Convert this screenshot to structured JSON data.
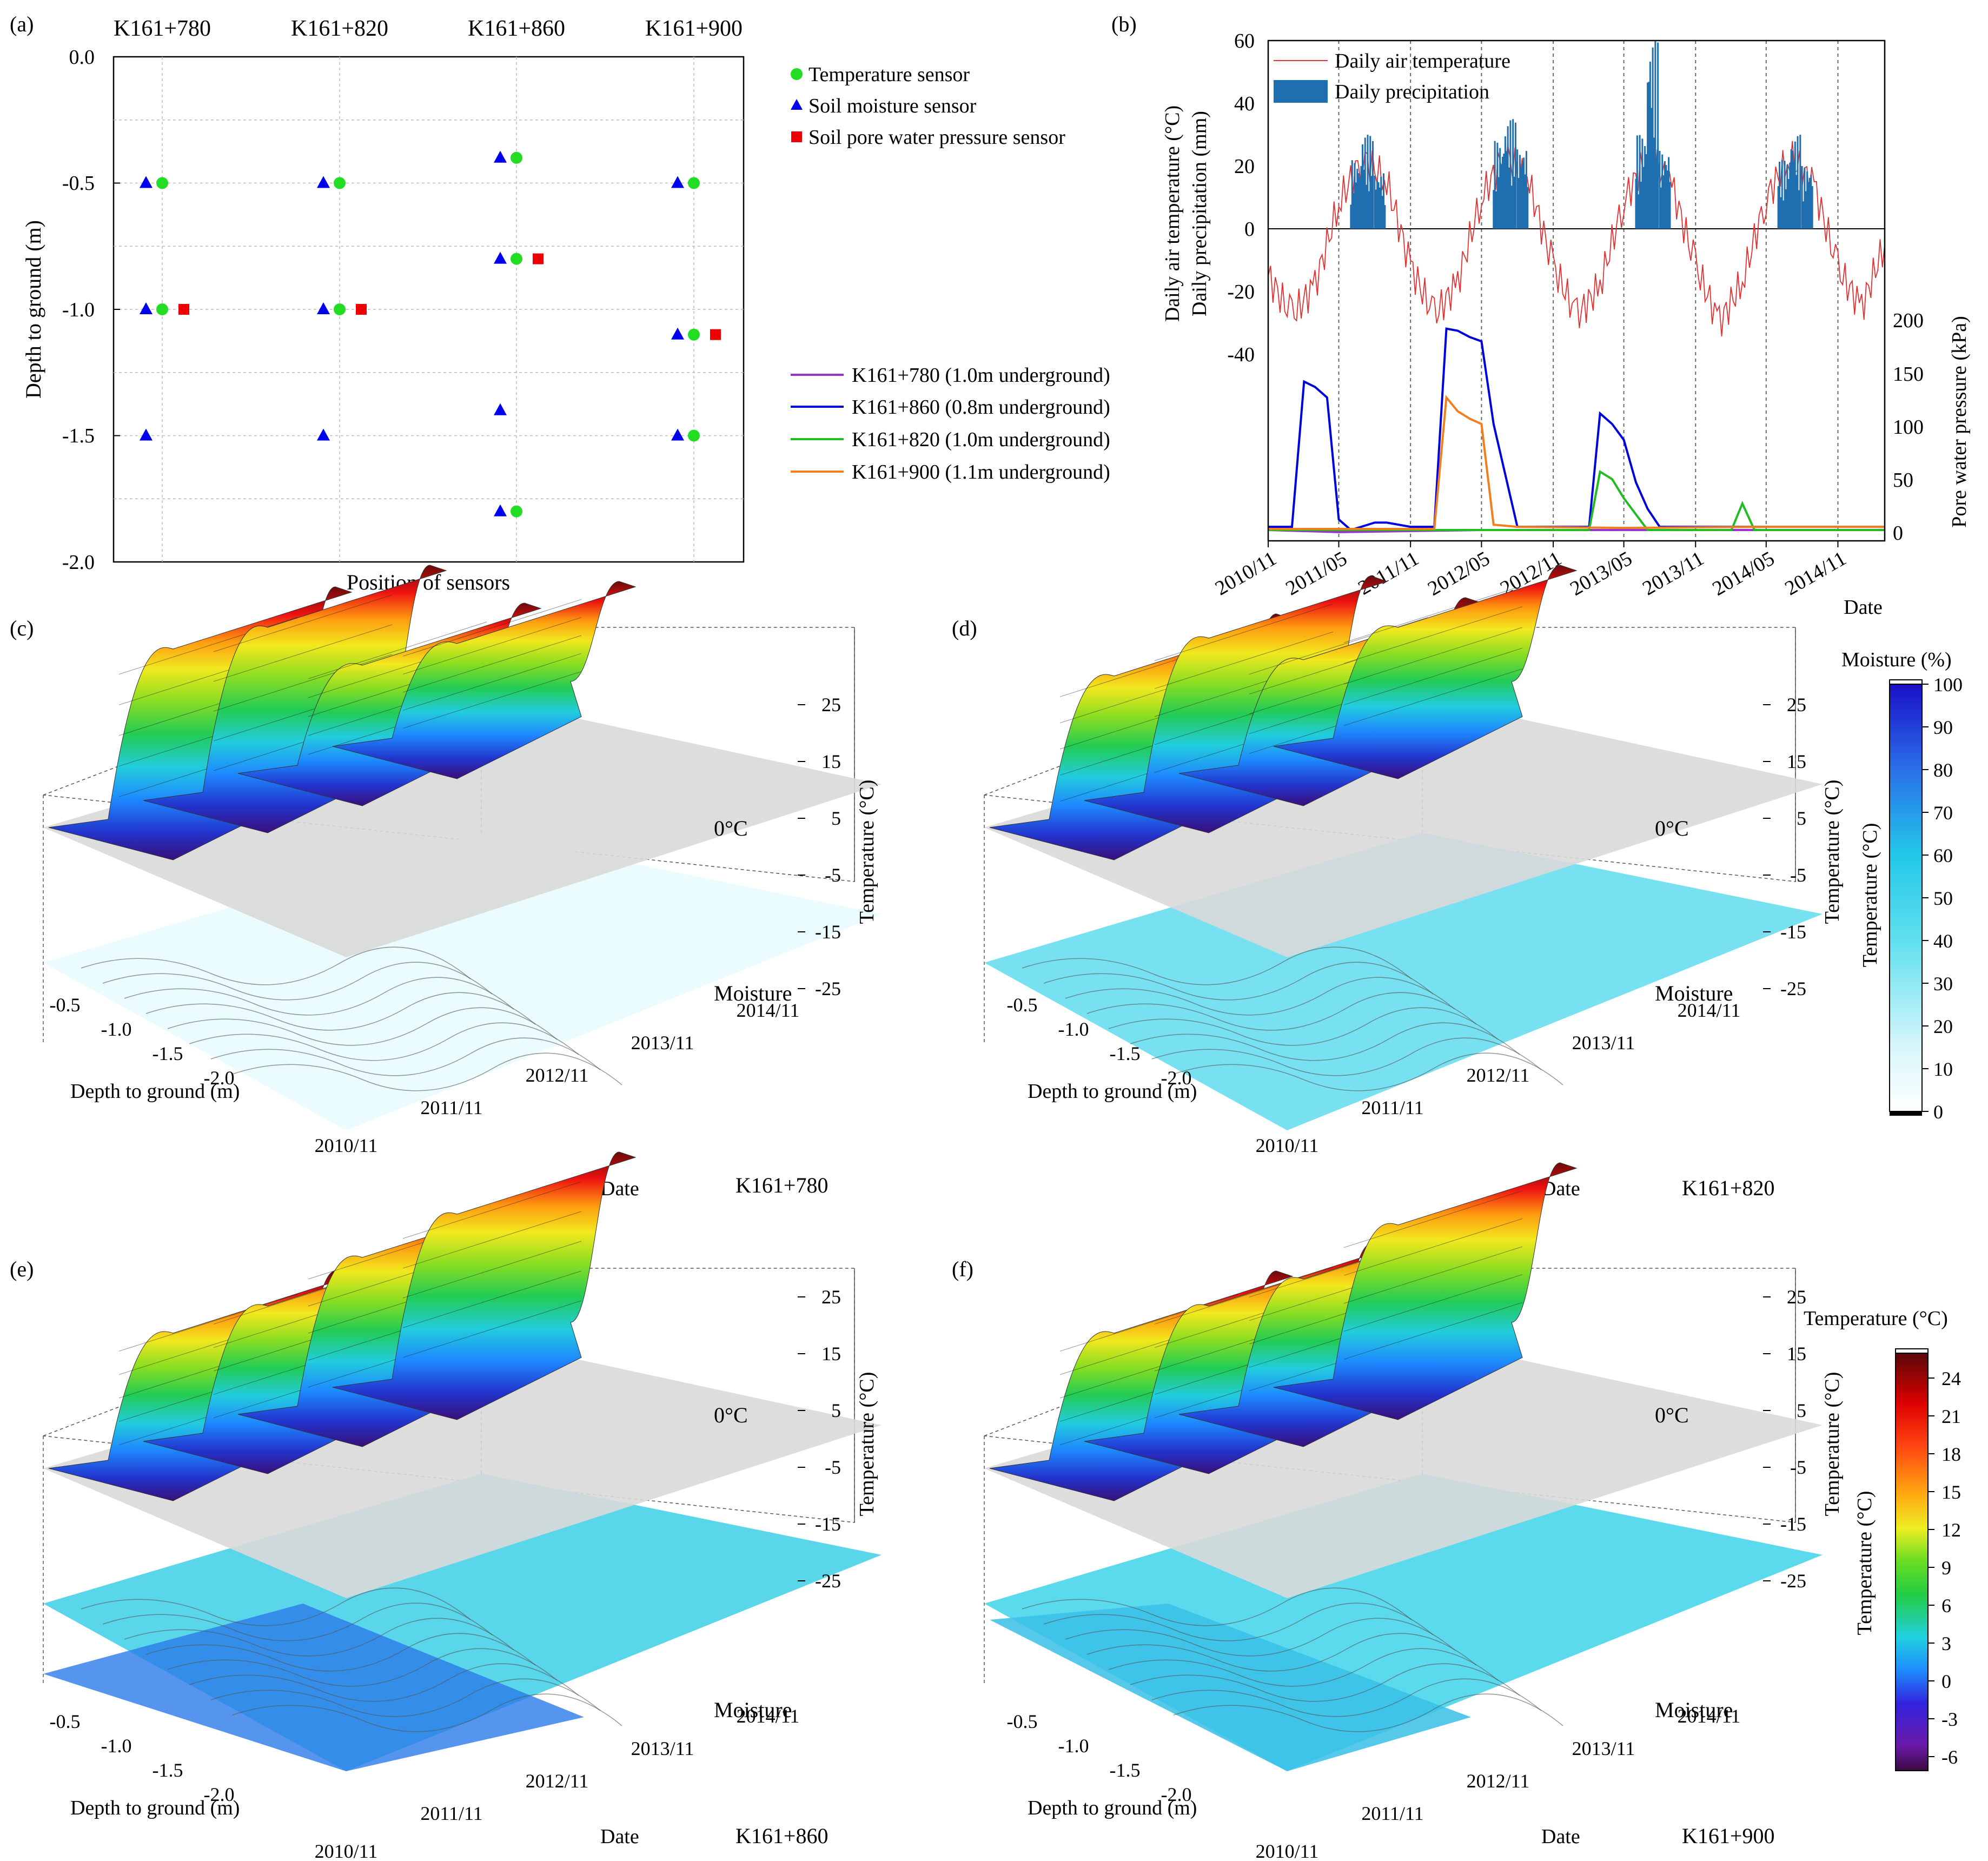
{
  "panels": {
    "a": {
      "label": "(a)",
      "xlabel": "Position of sensors",
      "ylabel": "Depth to ground (m)",
      "stations": [
        "K161+780",
        "K161+820",
        "K161+860",
        "K161+900"
      ],
      "yticks": [
        "0.0",
        "-0.5",
        "-1.0",
        "-1.5",
        "-2.0"
      ],
      "legend": [
        "Temperature sensor",
        "Soil moisture sensor",
        "Soil pore water pressure sensor"
      ]
    },
    "b": {
      "label": "(b)",
      "ylabel_left_1": "Daily air temperature (°C)",
      "ylabel_left_2": "Daily precipitation (mm)",
      "ylabel_right": "Pore water pressure (kPa)",
      "xlabel": "Date",
      "left_ticks": [
        "60",
        "40",
        "20",
        "0",
        "-20",
        "-40"
      ],
      "right_ticks": [
        "200",
        "150",
        "100",
        "50",
        "0"
      ],
      "dates": [
        "2010/11",
        "2011/05",
        "2011/11",
        "2012/05",
        "2012/11",
        "2013/05",
        "2013/11",
        "2014/05",
        "2014/11"
      ],
      "legend_top": [
        "Daily air temperature",
        "Daily precipitation"
      ],
      "legend_bottom": [
        "K161+780 (1.0m underground)",
        "K161+860 (0.8m underground)",
        "K161+820 (1.0m underground)",
        "K161+900 (1.1m underground)"
      ]
    },
    "surfaces": [
      {
        "label": "(c)",
        "station": "K161+780"
      },
      {
        "label": "(d)",
        "station": "K161+820"
      },
      {
        "label": "(e)",
        "station": "K161+860"
      },
      {
        "label": "(f)",
        "station": "K161+900"
      }
    ],
    "surface_common": {
      "zlabel": "Temperature (°C)",
      "zticks": [
        "25",
        "15",
        "5",
        "-5",
        "-15",
        "-25"
      ],
      "depth_label": "Depth to ground (m)",
      "depth_ticks": [
        "-0.5",
        "-1.0",
        "-1.5",
        "-2.0"
      ],
      "date_label": "Date",
      "date_ticks": [
        "2010/11",
        "2011/11",
        "2012/11",
        "2013/11",
        "2014/11"
      ],
      "zero_label": "0°C",
      "moisture_label": "Moisture"
    },
    "colorbar_moisture": {
      "title": "Moisture (%)",
      "side_label": "Temperature (°C)",
      "ticks": [
        "100",
        "90",
        "80",
        "70",
        "60",
        "50",
        "40",
        "30",
        "20",
        "10",
        "0"
      ]
    },
    "colorbar_temperature": {
      "title": "Temperature (°C)",
      "side_label": "Temperature (°C)",
      "ticks": [
        "24",
        "21",
        "18",
        "15",
        "12",
        "9",
        "6",
        "3",
        "0",
        "-3",
        "-6"
      ]
    }
  },
  "chart_data": [
    {
      "type": "scatter",
      "panel": "a",
      "xlabel": "Position of sensors",
      "ylabel": "Depth to ground (m)",
      "ylim": [
        -2.0,
        0.0
      ],
      "categories": [
        "K161+780",
        "K161+820",
        "K161+860",
        "K161+900"
      ],
      "series": [
        {
          "name": "Temperature sensor",
          "color": "#22dd22",
          "points": [
            [
              "K161+780",
              -0.5
            ],
            [
              "K161+780",
              -1.0
            ],
            [
              "K161+820",
              -0.5
            ],
            [
              "K161+820",
              -1.0
            ],
            [
              "K161+860",
              -0.4
            ],
            [
              "K161+860",
              -0.8
            ],
            [
              "K161+860",
              -1.8
            ],
            [
              "K161+900",
              -0.5
            ],
            [
              "K161+900",
              -1.1
            ],
            [
              "K161+900",
              -1.5
            ]
          ]
        },
        {
          "name": "Soil moisture sensor",
          "color": "#0000ee",
          "points": [
            [
              "K161+780",
              -0.5
            ],
            [
              "K161+780",
              -1.0
            ],
            [
              "K161+780",
              -1.5
            ],
            [
              "K161+820",
              -0.5
            ],
            [
              "K161+820",
              -1.0
            ],
            [
              "K161+820",
              -1.5
            ],
            [
              "K161+860",
              -0.4
            ],
            [
              "K161+860",
              -0.8
            ],
            [
              "K161+860",
              -1.4
            ],
            [
              "K161+860",
              -1.8
            ],
            [
              "K161+900",
              -0.5
            ],
            [
              "K161+900",
              -1.1
            ],
            [
              "K161+900",
              -1.5
            ]
          ]
        },
        {
          "name": "Soil pore water pressure sensor",
          "color": "#ee0000",
          "points": [
            [
              "K161+780",
              -1.0
            ],
            [
              "K161+820",
              -1.0
            ],
            [
              "K161+860",
              -0.8
            ],
            [
              "K161+900",
              -1.1
            ]
          ]
        }
      ]
    },
    {
      "type": "line",
      "panel": "b",
      "xlabel": "Date",
      "x_range": [
        "2010/11",
        "2015/03"
      ],
      "left_axis": {
        "label": "Daily air temperature (°C) / Daily precipitation (mm)",
        "range": [
          -40,
          60
        ]
      },
      "right_axis": {
        "label": "Pore water pressure (kPa)",
        "range": [
          0,
          200
        ]
      },
      "series": [
        {
          "name": "Daily air temperature",
          "color": "#e03030",
          "axis": "left",
          "x": [
            "2010/11",
            "2011/01",
            "2011/03",
            "2011/05",
            "2011/07",
            "2011/09",
            "2011/11",
            "2012/01",
            "2012/03",
            "2012/05",
            "2012/07",
            "2012/09",
            "2012/11",
            "2013/01",
            "2013/03",
            "2013/05",
            "2013/07",
            "2013/09",
            "2013/11",
            "2014/01",
            "2014/03",
            "2014/05",
            "2014/07",
            "2014/09",
            "2014/11",
            "2015/01",
            "2015/03"
          ],
          "values": [
            -15,
            -28,
            -18,
            8,
            23,
            15,
            -12,
            -28,
            -17,
            10,
            24,
            14,
            -12,
            -28,
            -18,
            9,
            23,
            14,
            -12,
            -30,
            -17,
            10,
            23,
            14,
            -13,
            -25,
            -5
          ]
        },
        {
          "name": "Daily precipitation",
          "color": "#1f6fb0",
          "axis": "left",
          "type": "bar",
          "x": [
            "2011/06",
            "2011/07",
            "2011/08",
            "2012/06",
            "2012/07",
            "2012/08",
            "2013/06",
            "2013/07",
            "2013/08",
            "2014/06",
            "2014/07",
            "2014/08"
          ],
          "values": [
            22,
            30,
            18,
            28,
            35,
            26,
            30,
            60,
            25,
            22,
            30,
            20
          ]
        },
        {
          "name": "K161+780 (1.0m underground)",
          "color": "#9933cc",
          "axis": "right",
          "x": [
            "2010/11",
            "2011/05",
            "2012/05",
            "2013/05",
            "2014/05",
            "2015/03"
          ],
          "values": [
            0,
            -2,
            0,
            0,
            0,
            0
          ]
        },
        {
          "name": "K161+860 (0.8m underground)",
          "color": "#0000dd",
          "axis": "right",
          "x": [
            "2010/11",
            "2011/01",
            "2011/02",
            "2011/03",
            "2011/04",
            "2011/05",
            "2011/06",
            "2011/08",
            "2011/09",
            "2011/11",
            "2012/01",
            "2012/02",
            "2012/03",
            "2012/04",
            "2012/05",
            "2012/06",
            "2012/08",
            "2012/11",
            "2013/01",
            "2013/02",
            "2013/03",
            "2013/04",
            "2013/05",
            "2013/06",
            "2013/07",
            "2013/08",
            "2013/09",
            "2014/01",
            "2015/03"
          ],
          "values": [
            3,
            3,
            140,
            135,
            125,
            10,
            0,
            7,
            7,
            3,
            3,
            190,
            188,
            182,
            178,
            100,
            3,
            3,
            3,
            3,
            110,
            100,
            85,
            45,
            20,
            3,
            3,
            3,
            3
          ]
        },
        {
          "name": "K161+820 (1.0m underground)",
          "color": "#22bb22",
          "axis": "right",
          "x": [
            "2010/11",
            "2012/11",
            "2013/02",
            "2013/03",
            "2013/04",
            "2013/05",
            "2013/07",
            "2014/02",
            "2014/03",
            "2014/04",
            "2015/03"
          ],
          "values": [
            0,
            0,
            0,
            55,
            48,
            30,
            0,
            0,
            25,
            0,
            0
          ]
        },
        {
          "name": "K161+900 (1.1m underground)",
          "color": "#f07f20",
          "axis": "right",
          "x": [
            "2010/11",
            "2012/01",
            "2012/02",
            "2012/03",
            "2012/04",
            "2012/05",
            "2012/06",
            "2012/08",
            "2013/05",
            "2014/05",
            "2015/03"
          ],
          "values": [
            1,
            1,
            125,
            112,
            105,
            100,
            5,
            3,
            2,
            3,
            3
          ]
        }
      ]
    }
  ]
}
